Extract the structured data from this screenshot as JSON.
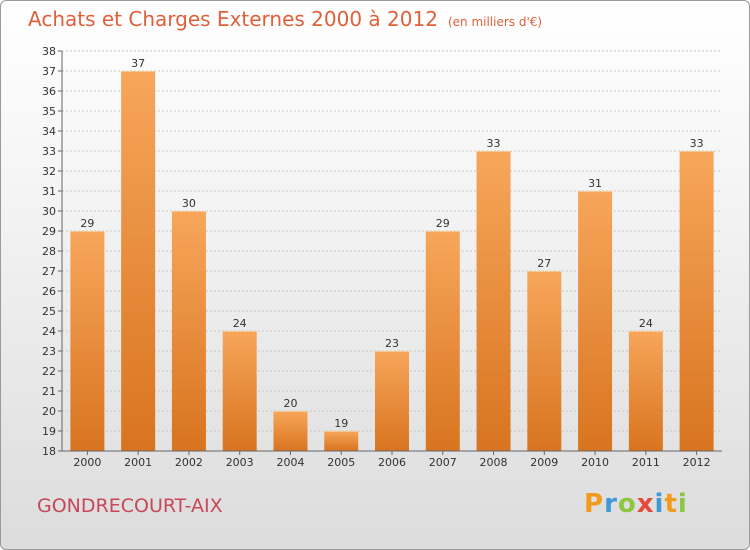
{
  "header": {
    "title": "Achats et Charges Externes 2000 à 2012",
    "unit": "(en milliers d'€)"
  },
  "footer": {
    "commune": "GONDRECOURT-AIX",
    "logo_letters": [
      "P",
      "r",
      "o",
      "x",
      "i",
      "t",
      "i"
    ]
  },
  "colors": {
    "title": "#e0603a",
    "commune": "#c8485a",
    "bar_top": "#f7a65b",
    "bar_bottom": "#d8741f",
    "logo": [
      "#f29a1c",
      "#3d9ad6",
      "#8dc63f",
      "#e8473b",
      "#3d9ad6",
      "#f29a1c",
      "#8dc63f"
    ]
  },
  "chart_data": {
    "type": "bar",
    "title": "Achats et Charges Externes 2000 à 2012",
    "subtitle": "(en milliers d'€)",
    "categories": [
      "2000",
      "2001",
      "2002",
      "2003",
      "2004",
      "2005",
      "2006",
      "2007",
      "2008",
      "2009",
      "2010",
      "2011",
      "2012"
    ],
    "values": [
      29,
      37,
      30,
      24,
      20,
      19,
      23,
      29,
      33,
      27,
      31,
      24,
      33
    ],
    "ylim": [
      18,
      38
    ],
    "ytick_step": 1,
    "grid": true,
    "xlabel": "",
    "ylabel": ""
  }
}
